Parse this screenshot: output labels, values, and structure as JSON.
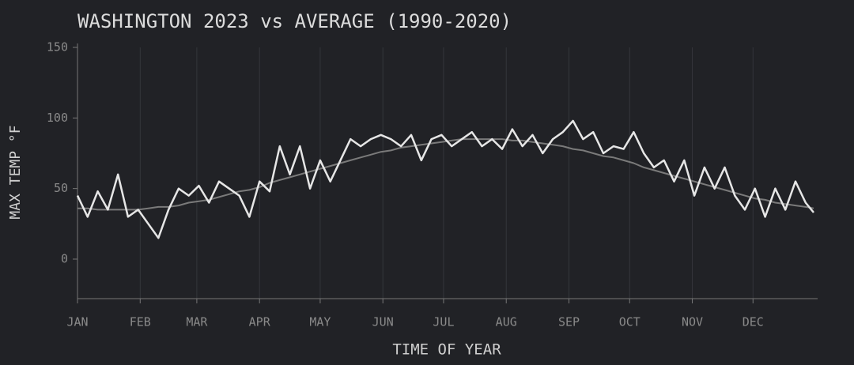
{
  "chart_data": {
    "type": "line",
    "title": "WASHINGTON 2023 vs AVERAGE (1990-2020)",
    "xlabel": "TIME OF YEAR",
    "ylabel": "MAX TEMP °F",
    "x": [
      1,
      6,
      11,
      16,
      21,
      26,
      31,
      36,
      41,
      46,
      51,
      56,
      61,
      66,
      71,
      76,
      81,
      86,
      91,
      96,
      101,
      106,
      111,
      116,
      121,
      126,
      131,
      136,
      141,
      146,
      151,
      156,
      161,
      166,
      171,
      176,
      181,
      186,
      191,
      196,
      201,
      206,
      211,
      216,
      221,
      226,
      231,
      236,
      241,
      246,
      251,
      256,
      261,
      266,
      271,
      276,
      281,
      286,
      291,
      296,
      301,
      306,
      311,
      316,
      321,
      326,
      331,
      336,
      341,
      346,
      351,
      356,
      361,
      365
    ],
    "series": [
      {
        "color": "#7a7a7a",
        "values": [
          36,
          36,
          35,
          35,
          35,
          35,
          35,
          36,
          37,
          37,
          38,
          40,
          41,
          42,
          44,
          46,
          48,
          49,
          51,
          54,
          56,
          58,
          60,
          62,
          64,
          66,
          68,
          70,
          72,
          74,
          76,
          77,
          79,
          80,
          81,
          82,
          83,
          84,
          85,
          85,
          85,
          85,
          85,
          84,
          84,
          83,
          82,
          81,
          80,
          78,
          77,
          75,
          73,
          72,
          70,
          68,
          65,
          63,
          61,
          59,
          57,
          55,
          53,
          51,
          49,
          47,
          45,
          43,
          42,
          40,
          39,
          38,
          37,
          36
        ]
      },
      {
        "color": "#e6e6e6",
        "values": [
          45,
          30,
          48,
          35,
          60,
          30,
          35,
          25,
          15,
          35,
          50,
          45,
          52,
          40,
          55,
          50,
          45,
          30,
          55,
          48,
          80,
          60,
          80,
          50,
          70,
          55,
          70,
          85,
          80,
          85,
          88,
          85,
          80,
          88,
          70,
          85,
          88,
          80,
          85,
          90,
          80,
          85,
          78,
          92,
          80,
          88,
          75,
          85,
          90,
          98,
          85,
          90,
          75,
          80,
          78,
          90,
          75,
          65,
          70,
          55,
          70,
          45,
          65,
          50,
          65,
          45,
          35,
          50,
          30,
          50,
          35,
          55,
          40,
          33
        ]
      }
    ],
    "xlim": [
      1,
      365
    ],
    "xticks": [
      {
        "value": 1,
        "label": "JAN"
      },
      {
        "value": 32,
        "label": "FEB"
      },
      {
        "value": 60,
        "label": "MAR"
      },
      {
        "value": 91,
        "label": "APR"
      },
      {
        "value": 121,
        "label": "MAY"
      },
      {
        "value": 152,
        "label": "JUN"
      },
      {
        "value": 182,
        "label": "JUL"
      },
      {
        "value": 213,
        "label": "AUG"
      },
      {
        "value": 244,
        "label": "SEP"
      },
      {
        "value": 274,
        "label": "OCT"
      },
      {
        "value": 305,
        "label": "NOV"
      },
      {
        "value": 335,
        "label": "DEC"
      }
    ],
    "ylim": [
      -28,
      150
    ],
    "yticks": [
      0,
      50,
      100,
      150
    ],
    "grid": true
  }
}
